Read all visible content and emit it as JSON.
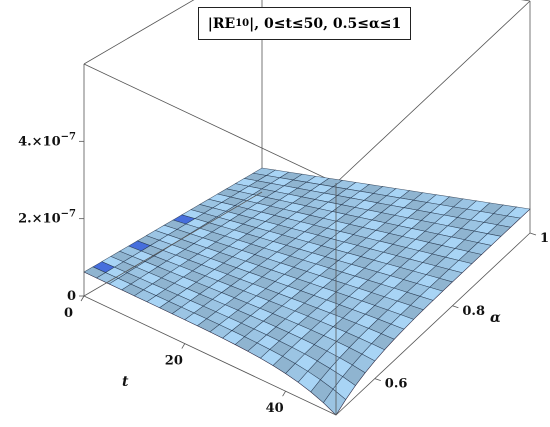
{
  "chart_data": {
    "type": "surface3d",
    "title": {
      "prefix": "|RE",
      "subscript": "10",
      "suffix": "|, 0≤t≤50, 0.5≤α≤1"
    },
    "xlabel": "t",
    "ylabel": "α",
    "zlabel": "",
    "xlim": [
      0,
      50
    ],
    "ylim": [
      0.5,
      1.0
    ],
    "zlim": [
      0,
      6e-07
    ],
    "x_ticks": [
      {
        "value": 0,
        "label": "0"
      },
      {
        "value": 20,
        "label": "20"
      },
      {
        "value": 40,
        "label": "40"
      }
    ],
    "y_ticks": [
      {
        "value": 0.6,
        "label": "0.6"
      },
      {
        "value": 0.8,
        "label": "0.8"
      },
      {
        "value": 1.0,
        "label": "1.0"
      }
    ],
    "z_ticks": [
      {
        "value": 0,
        "label": "0",
        "exp": ""
      },
      {
        "value": 2e-07,
        "label": "2.×10",
        "exp": "−7"
      },
      {
        "value": 4e-07,
        "label": "4.×10",
        "exp": "−7"
      }
    ],
    "surface_max": 6.2e-08,
    "surface_corner_value": 0,
    "surface_color": "#a8d4f5",
    "underside_color": "#8a3060",
    "mesh_color": "#1a2a40"
  }
}
